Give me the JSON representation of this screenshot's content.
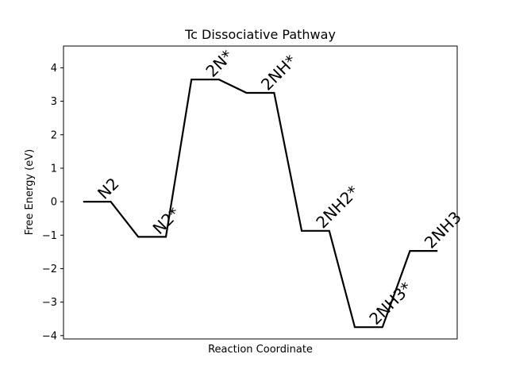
{
  "chart_data": {
    "type": "line",
    "title": "Tc Dissociative Pathway",
    "xlabel": "Reaction Coordinate",
    "ylabel": "Free Energy (eV)",
    "ylim": [
      -4.1,
      4.65
    ],
    "xlim": [
      0,
      10
    ],
    "yticks": [
      -4,
      -3,
      -2,
      -1,
      0,
      1,
      2,
      3,
      4
    ],
    "ytick_labels": [
      "−4",
      "−3",
      "−2",
      "−1",
      "0",
      "1",
      "2",
      "3",
      "4"
    ],
    "xticks": [],
    "grid": false,
    "states": [
      {
        "label": "N2",
        "x": [
          0.5,
          1.2
        ],
        "y": 0.0
      },
      {
        "label": "N2*",
        "x": [
          1.9,
          2.6
        ],
        "y": -1.05
      },
      {
        "label": "2N*",
        "x": [
          3.25,
          3.95
        ],
        "y": 3.65
      },
      {
        "label": "2NH*",
        "x": [
          4.65,
          5.35
        ],
        "y": 3.25
      },
      {
        "label": "2NH2*",
        "x": [
          6.05,
          6.75
        ],
        "y": -0.87
      },
      {
        "label": "2NH3*",
        "x": [
          7.4,
          8.1
        ],
        "y": -3.75
      },
      {
        "label": "2NH3",
        "x": [
          8.8,
          9.5
        ],
        "y": -1.47
      }
    ],
    "line_color": "#000000"
  }
}
